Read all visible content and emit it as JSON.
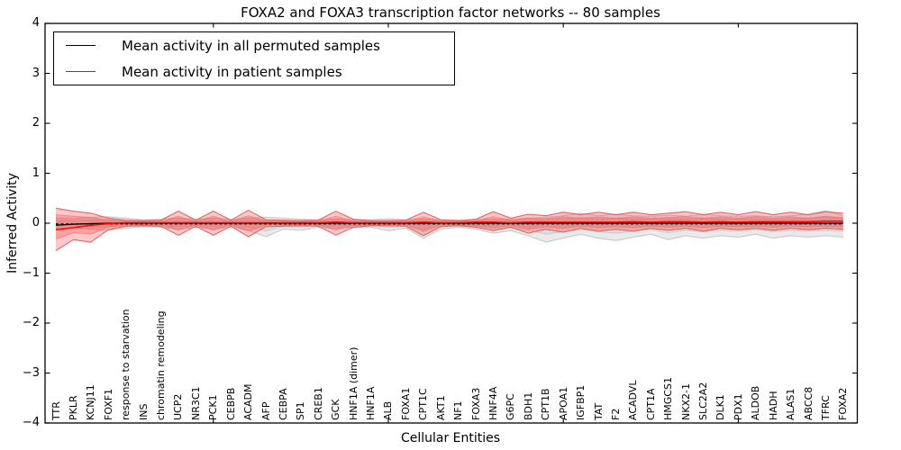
{
  "title": "FOXA2 and FOXA3 transcription factor networks -- 80 samples",
  "axes": {
    "xlabel": "Cellular Entities",
    "ylabel": "Inferred Activity",
    "ytick_labels": [
      "4",
      "3",
      "2",
      "1",
      "0",
      "−1",
      "−2",
      "−3",
      "−4"
    ]
  },
  "legend": {
    "items": [
      {
        "label": "Mean activity in all permuted samples",
        "color": "#000000"
      },
      {
        "label": "Mean activity in patient samples",
        "color": "#ff0000"
      }
    ]
  },
  "chart_data": {
    "type": "line",
    "title": "FOXA2 and FOXA3 transcription factor networks -- 80 samples",
    "xlabel": "Cellular Entities",
    "ylabel": "Inferred Activity",
    "ylim": [
      -4,
      4
    ],
    "yticks": [
      4,
      3,
      2,
      1,
      0,
      -1,
      -2,
      -3,
      -4
    ],
    "xticks_at_category_index": [
      9,
      19,
      29,
      39
    ],
    "grid": false,
    "legend_position": "upper left",
    "categories": [
      "TTR",
      "PKLR",
      "KCNJ11",
      "FOXF1",
      "response to starvation",
      "INS",
      "chromatin remodeling",
      "UCP2",
      "NR3C1",
      "PCK1",
      "CEBPB",
      "ACADM",
      "AFP",
      "CEBPA",
      "SP1",
      "CREB1",
      "GCK",
      "HNF1A (dimer)",
      "HNF1A",
      "ALB",
      "FOXA1",
      "CPT1C",
      "AKT1",
      "NF1",
      "FOXA3",
      "HNF4A",
      "G6PC",
      "BDH1",
      "CPT1B",
      "APOA1",
      "IGFBP1",
      "TAT",
      "F2",
      "ACADVL",
      "CPT1A",
      "HMGCS1",
      "NKX2-1",
      "SLC2A2",
      "DLK1",
      "PDX1",
      "ALDOB",
      "HADH",
      "ALAS1",
      "ABCC8",
      "TFRC",
      "FOXA2"
    ],
    "series": [
      {
        "name": "Mean activity in all permuted samples",
        "color": "#000000",
        "style": "solid_with_dashed_overlay",
        "values": [
          -0.04,
          -0.02,
          -0.01,
          0,
          0,
          0,
          0,
          0,
          0,
          0,
          0,
          0,
          0,
          0,
          0,
          0,
          0,
          0,
          0,
          0,
          0,
          0,
          0,
          0,
          0,
          0,
          0,
          0,
          0,
          0,
          0,
          0,
          0,
          0,
          0,
          0,
          0,
          0,
          0,
          0,
          0,
          0,
          0,
          0,
          0,
          0
        ]
      },
      {
        "name": "Mean activity in patient samples",
        "color": "#ff0000",
        "style": "solid",
        "values": [
          -0.13,
          -0.09,
          -0.04,
          -0.01,
          0.01,
          0.01,
          0.01,
          0.01,
          0.01,
          0.01,
          0.01,
          0.01,
          0.01,
          0.01,
          0.01,
          0.01,
          0.02,
          0.01,
          0.01,
          0.01,
          0.01,
          0.02,
          0.01,
          0.01,
          0.02,
          0.02,
          0.01,
          0.02,
          0.02,
          0.02,
          0.02,
          0.02,
          0.02,
          0.03,
          0.02,
          0.03,
          0.03,
          0.02,
          0.03,
          0.02,
          0.03,
          0.03,
          0.03,
          0.03,
          0.04,
          0.04
        ]
      }
    ],
    "bands": [
      {
        "name": "permuted-samples-std-band",
        "fill": "rgba(128,128,128,0.17)",
        "edge": "rgba(165,165,165,0.55)",
        "inner_fill": "rgba(128,128,128,0.15)",
        "inner_edge": "rgba(170,170,170,0.35)",
        "upper": [
          0.1,
          0.09,
          0.12,
          0.13,
          0.1,
          0.07,
          0.08,
          0.1,
          0.08,
          0.1,
          0.08,
          0.1,
          0.12,
          0.1,
          0.08,
          0.07,
          0.08,
          0.07,
          0.07,
          0.09,
          0.07,
          0.08,
          0.07,
          0.06,
          0.07,
          0.08,
          0.08,
          0.1,
          0.12,
          0.15,
          0.2,
          0.15,
          0.18,
          0.15,
          0.14,
          0.16,
          0.14,
          0.18,
          0.15,
          0.14,
          0.15,
          0.13,
          0.15,
          0.18,
          0.25,
          0.15
        ],
        "lower": [
          -0.1,
          -0.09,
          -0.12,
          -0.14,
          -0.1,
          -0.07,
          -0.08,
          -0.12,
          -0.08,
          -0.12,
          -0.08,
          -0.14,
          -0.27,
          -0.12,
          -0.14,
          -0.08,
          -0.1,
          -0.08,
          -0.08,
          -0.15,
          -0.1,
          -0.3,
          -0.12,
          -0.08,
          -0.12,
          -0.2,
          -0.15,
          -0.25,
          -0.38,
          -0.3,
          -0.22,
          -0.3,
          -0.35,
          -0.28,
          -0.22,
          -0.33,
          -0.25,
          -0.3,
          -0.25,
          -0.28,
          -0.22,
          -0.3,
          -0.25,
          -0.28,
          -0.25,
          -0.28
        ]
      },
      {
        "name": "patient-samples-std-band",
        "fill": "rgba(255,45,45,0.26)",
        "edge": "rgba(232,85,85,0.9)",
        "inner_fill": "rgba(255,45,45,0.26)",
        "inner_edge": "rgba(235,95,95,0.5)",
        "upper": [
          0.3,
          0.24,
          0.2,
          0.1,
          0.06,
          0.05,
          0.06,
          0.24,
          0.06,
          0.24,
          0.06,
          0.26,
          0.07,
          0.06,
          0.05,
          0.06,
          0.24,
          0.08,
          0.05,
          0.05,
          0.06,
          0.22,
          0.07,
          0.05,
          0.08,
          0.23,
          0.1,
          0.18,
          0.15,
          0.22,
          0.17,
          0.22,
          0.17,
          0.22,
          0.17,
          0.2,
          0.23,
          0.17,
          0.22,
          0.17,
          0.23,
          0.17,
          0.22,
          0.17,
          0.23,
          0.2
        ],
        "lower": [
          -0.55,
          -0.33,
          -0.38,
          -0.13,
          -0.06,
          -0.05,
          -0.06,
          -0.24,
          -0.06,
          -0.24,
          -0.06,
          -0.27,
          -0.07,
          -0.06,
          -0.05,
          -0.06,
          -0.24,
          -0.08,
          -0.05,
          -0.05,
          -0.06,
          -0.25,
          -0.07,
          -0.05,
          -0.08,
          -0.15,
          -0.08,
          -0.2,
          -0.12,
          -0.18,
          -0.1,
          -0.16,
          -0.12,
          -0.16,
          -0.1,
          -0.14,
          -0.1,
          -0.16,
          -0.1,
          -0.13,
          -0.1,
          -0.14,
          -0.1,
          -0.13,
          -0.1,
          -0.12
        ]
      }
    ]
  }
}
